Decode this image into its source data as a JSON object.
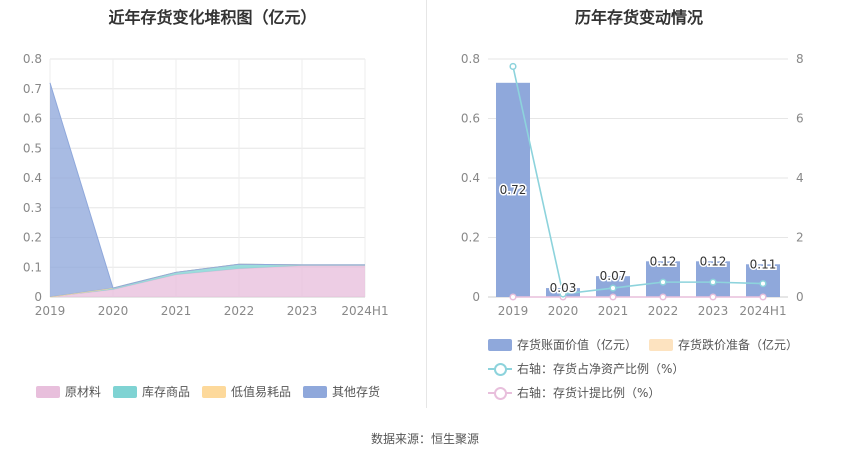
{
  "left_chart": {
    "title": "近年存货变化堆积图（亿元）",
    "legend": [
      "原材料",
      "库存商品",
      "低值易耗品",
      "其他存货"
    ]
  },
  "right_chart": {
    "title": "历年存货变动情况",
    "legend": {
      "bar1": "存货账面价值（亿元）",
      "bar2": "存货跌价准备（亿元）",
      "line1": "右轴：存货占净资产比例（%）",
      "line2": "右轴：存货计提比例（%）"
    }
  },
  "source": "数据来源：恒生聚源",
  "chart_data": [
    {
      "type": "area",
      "title": "近年存货变化堆积图（亿元）",
      "categories": [
        "2019",
        "2020",
        "2021",
        "2022",
        "2023",
        "2024H1"
      ],
      "ylim": [
        0,
        0.8
      ],
      "yticks": [
        0,
        0.1,
        0.2,
        0.3,
        0.4,
        0.5,
        0.6,
        0.7,
        0.8
      ],
      "stacked": true,
      "grid": true,
      "legend_position": "bottom",
      "series": [
        {
          "name": "原材料",
          "color": "#e8bfdc",
          "values": [
            0,
            0.025,
            0.075,
            0.095,
            0.105,
            0.105
          ]
        },
        {
          "name": "库存商品",
          "color": "#7fd3d3",
          "values": [
            0,
            0.005,
            0.008,
            0.015,
            0.003,
            0.003
          ]
        },
        {
          "name": "低值易耗品",
          "color": "#fdd99b",
          "values": [
            0,
            0,
            0,
            0,
            0,
            0
          ]
        },
        {
          "name": "其他存货",
          "color": "#8fa8db",
          "values": [
            0.72,
            0,
            0,
            0,
            0,
            0
          ]
        }
      ]
    },
    {
      "type": "bar",
      "title": "历年存货变动情况",
      "categories": [
        "2019",
        "2020",
        "2021",
        "2022",
        "2023",
        "2024H1"
      ],
      "ylim": [
        0,
        0.8
      ],
      "yticks": [
        0,
        0.2,
        0.4,
        0.6,
        0.8
      ],
      "y2lim": [
        0,
        8
      ],
      "y2ticks": [
        0,
        2,
        4,
        6,
        8
      ],
      "grid": true,
      "legend_position": "bottom",
      "series": [
        {
          "name": "存货账面价值（亿元）",
          "type": "bar",
          "axis": "left",
          "color": "#8fa8db",
          "values": [
            0.72,
            0.03,
            0.07,
            0.12,
            0.12,
            0.11
          ],
          "labels": [
            "0.72",
            "0.03",
            "0.07",
            "0.12",
            "0.12",
            "0.11"
          ]
        },
        {
          "name": "存货跌价准备（亿元）",
          "type": "bar",
          "axis": "left",
          "color": "#fde3c0",
          "values": [
            0,
            0,
            0,
            0,
            0,
            0
          ]
        },
        {
          "name": "右轴：存货占净资产比例（%）",
          "type": "line",
          "axis": "right",
          "color": "#8dd3dc",
          "values": [
            7.75,
            0.1,
            0.3,
            0.5,
            0.5,
            0.45
          ]
        },
        {
          "name": "右轴：存货计提比例（%）",
          "type": "line",
          "axis": "right",
          "color": "#e8bfdc",
          "values": [
            0,
            0,
            0,
            0,
            0,
            0
          ]
        }
      ]
    }
  ]
}
